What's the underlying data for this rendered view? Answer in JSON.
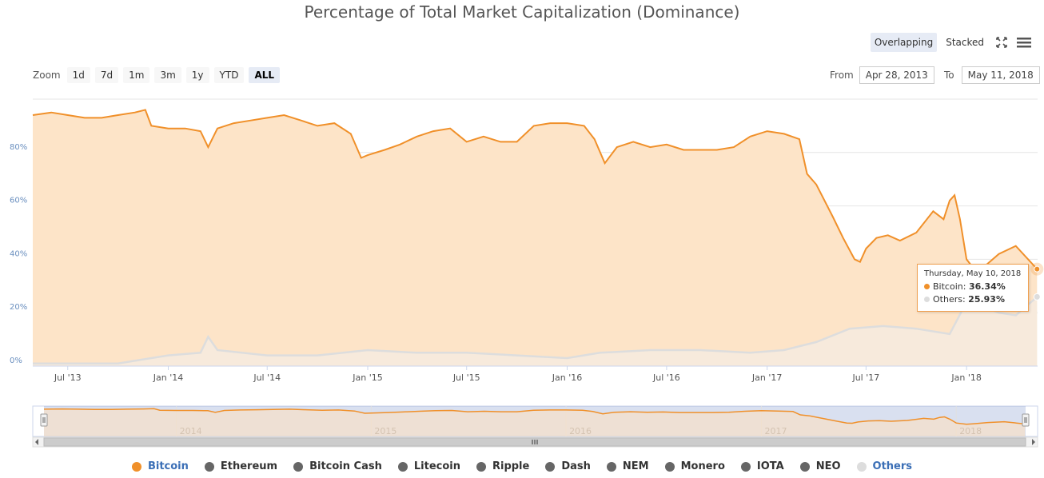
{
  "colors": {
    "bitcoin": "#f0902a",
    "bitcoin_fill": "#fde4c8",
    "others": "#dddddd",
    "legend_hidden": "#666666",
    "grid": "#e6e6e6",
    "axis_label": "#6a8fbf"
  },
  "toolbar": {
    "zoom_label": "Zoom",
    "zoom_buttons": [
      "1d",
      "7d",
      "1m",
      "3m",
      "1y",
      "YTD",
      "ALL"
    ],
    "active_zoom": "ALL",
    "view_overlapping": "Overlapping",
    "view_stacked": "Stacked",
    "active_view": "Overlapping",
    "fullscreen_icon": "fullscreen-icon",
    "menu_icon": "hamburger-menu-icon",
    "from_label": "From",
    "from_value": "Apr 28, 2013",
    "to_label": "To",
    "to_value": "May 11, 2018"
  },
  "tooltip": {
    "date": "Thursday, May 10, 2018",
    "bitcoin_label": "Bitcoin:",
    "bitcoin_value": "36.34%",
    "others_label": "Others:",
    "others_value": "25.93%"
  },
  "navigator": {
    "year_labels": [
      "2014",
      "2015",
      "2016",
      "2017",
      "2018"
    ]
  },
  "legend": [
    {
      "name": "Bitcoin",
      "color": "#f0902a",
      "active": true
    },
    {
      "name": "Ethereum",
      "color": "#666666",
      "active": false
    },
    {
      "name": "Bitcoin Cash",
      "color": "#666666",
      "active": false
    },
    {
      "name": "Litecoin",
      "color": "#666666",
      "active": false
    },
    {
      "name": "Ripple",
      "color": "#666666",
      "active": false
    },
    {
      "name": "Dash",
      "color": "#666666",
      "active": false
    },
    {
      "name": "NEM",
      "color": "#666666",
      "active": false
    },
    {
      "name": "Monero",
      "color": "#666666",
      "active": false
    },
    {
      "name": "IOTA",
      "color": "#666666",
      "active": false
    },
    {
      "name": "NEO",
      "color": "#666666",
      "active": false
    },
    {
      "name": "Others",
      "color": "#dddddd",
      "active": true
    }
  ],
  "chart_data": {
    "type": "area",
    "title": "Percentage of Total Market Capitalization (Dominance)",
    "xlabel": "",
    "ylabel": "",
    "x_tick_labels": [
      "Jul '13",
      "Jan '14",
      "Jul '14",
      "Jan '15",
      "Jul '15",
      "Jan '16",
      "Jul '16",
      "Jan '17",
      "Jul '17",
      "Jan '18"
    ],
    "y_tick_labels": [
      "0%",
      "20%",
      "40%",
      "60%",
      "80%"
    ],
    "ylim": [
      0,
      100
    ],
    "xlim": [
      "2013-04-28",
      "2018-05-11"
    ],
    "grid": true,
    "legend_position": "bottom",
    "series": [
      {
        "name": "Bitcoin",
        "values": [
          [
            "2013-04-28",
            94
          ],
          [
            "2013-06-01",
            95
          ],
          [
            "2013-07-01",
            94
          ],
          [
            "2013-08-01",
            93
          ],
          [
            "2013-09-01",
            93
          ],
          [
            "2013-10-01",
            94
          ],
          [
            "2013-11-01",
            95
          ],
          [
            "2013-11-20",
            96
          ],
          [
            "2013-12-01",
            90
          ],
          [
            "2014-01-01",
            89
          ],
          [
            "2014-02-01",
            89
          ],
          [
            "2014-03-01",
            88
          ],
          [
            "2014-03-15",
            82
          ],
          [
            "2014-04-01",
            89
          ],
          [
            "2014-05-01",
            91
          ],
          [
            "2014-06-01",
            92
          ],
          [
            "2014-07-01",
            93
          ],
          [
            "2014-08-01",
            94
          ],
          [
            "2014-09-01",
            92
          ],
          [
            "2014-10-01",
            90
          ],
          [
            "2014-11-01",
            91
          ],
          [
            "2014-12-01",
            87
          ],
          [
            "2014-12-20",
            78
          ],
          [
            "2015-01-01",
            79
          ],
          [
            "2015-02-01",
            81
          ],
          [
            "2015-03-01",
            83
          ],
          [
            "2015-04-01",
            86
          ],
          [
            "2015-05-01",
            88
          ],
          [
            "2015-06-01",
            89
          ],
          [
            "2015-07-01",
            84
          ],
          [
            "2015-08-01",
            86
          ],
          [
            "2015-09-01",
            84
          ],
          [
            "2015-10-01",
            84
          ],
          [
            "2015-11-01",
            90
          ],
          [
            "2015-12-01",
            91
          ],
          [
            "2016-01-01",
            91
          ],
          [
            "2016-02-01",
            90
          ],
          [
            "2016-02-20",
            85
          ],
          [
            "2016-03-10",
            76
          ],
          [
            "2016-04-01",
            82
          ],
          [
            "2016-05-01",
            84
          ],
          [
            "2016-06-01",
            82
          ],
          [
            "2016-07-01",
            83
          ],
          [
            "2016-08-01",
            81
          ],
          [
            "2016-09-01",
            81
          ],
          [
            "2016-10-01",
            81
          ],
          [
            "2016-11-01",
            82
          ],
          [
            "2016-12-01",
            86
          ],
          [
            "2017-01-01",
            88
          ],
          [
            "2017-02-01",
            87
          ],
          [
            "2017-03-01",
            85
          ],
          [
            "2017-03-15",
            72
          ],
          [
            "2017-04-01",
            68
          ],
          [
            "2017-05-01",
            56
          ],
          [
            "2017-05-20",
            48
          ],
          [
            "2017-06-10",
            40
          ],
          [
            "2017-06-20",
            39
          ],
          [
            "2017-07-01",
            44
          ],
          [
            "2017-07-20",
            48
          ],
          [
            "2017-08-10",
            49
          ],
          [
            "2017-09-01",
            47
          ],
          [
            "2017-10-01",
            50
          ],
          [
            "2017-11-01",
            58
          ],
          [
            "2017-11-20",
            55
          ],
          [
            "2017-12-01",
            62
          ],
          [
            "2017-12-10",
            64
          ],
          [
            "2017-12-20",
            55
          ],
          [
            "2018-01-01",
            40
          ],
          [
            "2018-01-20",
            35
          ],
          [
            "2018-02-01",
            37
          ],
          [
            "2018-03-01",
            42
          ],
          [
            "2018-04-01",
            45
          ],
          [
            "2018-05-10",
            36.34
          ]
        ]
      },
      {
        "name": "Others",
        "values": [
          [
            "2013-04-28",
            1
          ],
          [
            "2013-07-01",
            1
          ],
          [
            "2013-10-01",
            1
          ],
          [
            "2013-12-01",
            3
          ],
          [
            "2014-01-01",
            4
          ],
          [
            "2014-03-01",
            5
          ],
          [
            "2014-03-15",
            11
          ],
          [
            "2014-04-01",
            6
          ],
          [
            "2014-07-01",
            4
          ],
          [
            "2014-10-01",
            4
          ],
          [
            "2015-01-01",
            6
          ],
          [
            "2015-04-01",
            5
          ],
          [
            "2015-07-01",
            5
          ],
          [
            "2015-10-01",
            4
          ],
          [
            "2016-01-01",
            3
          ],
          [
            "2016-03-01",
            5
          ],
          [
            "2016-06-01",
            6
          ],
          [
            "2016-09-01",
            6
          ],
          [
            "2016-12-01",
            5
          ],
          [
            "2017-02-01",
            6
          ],
          [
            "2017-04-01",
            9
          ],
          [
            "2017-06-01",
            14
          ],
          [
            "2017-08-01",
            15
          ],
          [
            "2017-10-01",
            14
          ],
          [
            "2017-12-01",
            12
          ],
          [
            "2018-01-01",
            24
          ],
          [
            "2018-02-01",
            22
          ],
          [
            "2018-03-01",
            20
          ],
          [
            "2018-04-01",
            19
          ],
          [
            "2018-05-10",
            25.93
          ]
        ]
      }
    ]
  }
}
